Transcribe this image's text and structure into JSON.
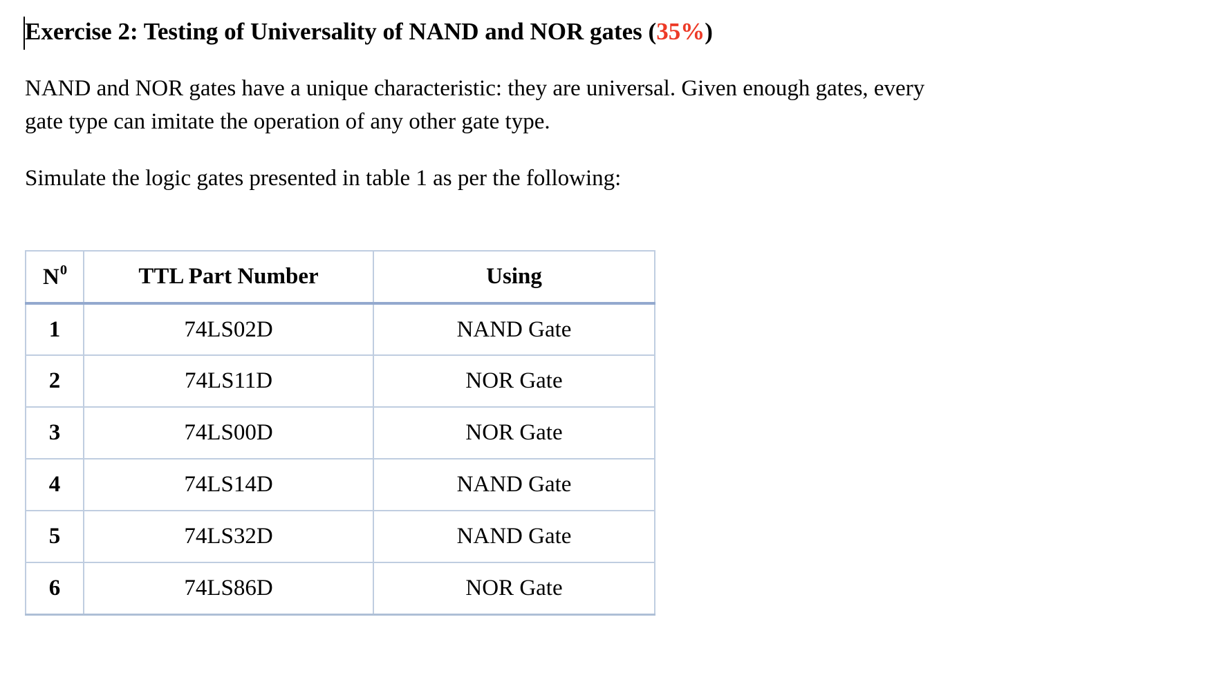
{
  "heading": {
    "prefix": "Exercise 2: Testing of Universality of NAND and NOR gates (",
    "percent": "35%",
    "suffix": ")"
  },
  "paragraph": {
    "line1": "NAND and NOR gates have a unique characteristic: they are universal. Given enough gates, every",
    "line2": "gate type can imitate the operation of any other gate type."
  },
  "simulate_text": "Simulate the logic gates presented in table 1 as per the following:",
  "table": {
    "headers": {
      "no_base": "N",
      "no_sup": "0",
      "part": "TTL Part Number",
      "using": "Using"
    },
    "rows": [
      {
        "no": "1",
        "part": "74LS02D",
        "using": "NAND Gate"
      },
      {
        "no": "2",
        "part": "74LS11D",
        "using": "NOR Gate"
      },
      {
        "no": "3",
        "part": "74LS00D",
        "using": "NOR Gate"
      },
      {
        "no": "4",
        "part": "74LS14D",
        "using": "NAND Gate"
      },
      {
        "no": "5",
        "part": "74LS32D",
        "using": "NAND Gate"
      },
      {
        "no": "6",
        "part": "74LS86D",
        "using": "NOR Gate"
      }
    ]
  },
  "colors": {
    "accent-red": "#ED3A27",
    "table-border": "#BFCDE0",
    "table-border-strong": "#93A9CE",
    "text": "#000000",
    "background": "#FFFFFF"
  }
}
